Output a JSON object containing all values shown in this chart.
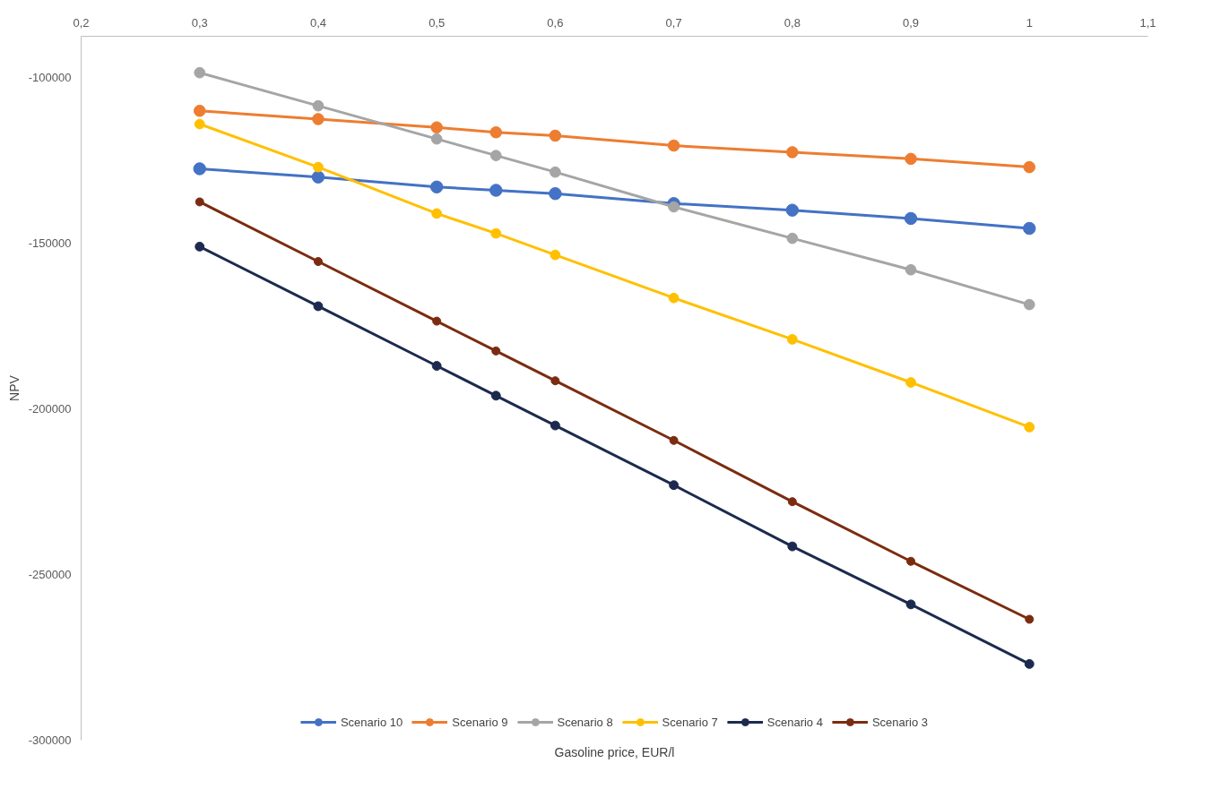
{
  "chart_data": {
    "type": "line",
    "xlabel": "Gasoline price, EUR/l",
    "ylabel": "NPV",
    "x": [
      0.3,
      0.4,
      0.5,
      0.55,
      0.6,
      0.7,
      0.8,
      0.9,
      1
    ],
    "series": [
      {
        "name": "Scenario 10",
        "color": "#4472c4",
        "values": [
          -127500,
          -130000,
          -133000,
          -134000,
          -135000,
          -138000,
          -140000,
          -142500,
          -145500
        ]
      },
      {
        "name": "Scenario 9",
        "color": "#ed7d31",
        "values": [
          -110000,
          -112500,
          -115000,
          -116500,
          -117500,
          -120500,
          -122500,
          -124500,
          -127000
        ]
      },
      {
        "name": "Scenario 8",
        "color": "#a5a5a5",
        "values": [
          -98500,
          -108500,
          -118500,
          -123500,
          -128500,
          -139000,
          -148500,
          -158000,
          -168500
        ]
      },
      {
        "name": "Scenario 7",
        "color": "#ffc000",
        "values": [
          -114000,
          -127000,
          -141000,
          -147000,
          -153500,
          -166500,
          -179000,
          -192000,
          -205500
        ]
      },
      {
        "name": "Scenario 4",
        "color": "#1c2a4f",
        "values": [
          -151000,
          -169000,
          -187000,
          -196000,
          -205000,
          -223000,
          -241500,
          -259000,
          -277000
        ]
      },
      {
        "name": "Scenario 3",
        "color": "#7b2c10",
        "values": [
          -137500,
          -155500,
          -173500,
          -182500,
          -191500,
          -209500,
          -228000,
          -246000,
          -263500
        ]
      }
    ],
    "xlim": [
      0.2,
      1.1
    ],
    "xticks": [
      {
        "value": 0.2,
        "label": "0,2"
      },
      {
        "value": 0.3,
        "label": "0,3"
      },
      {
        "value": 0.4,
        "label": "0,4"
      },
      {
        "value": 0.5,
        "label": "0,5"
      },
      {
        "value": 0.6,
        "label": "0,6"
      },
      {
        "value": 0.7,
        "label": "0,7"
      },
      {
        "value": 0.8,
        "label": "0,8"
      },
      {
        "value": 0.9,
        "label": "0,9"
      },
      {
        "value": 1,
        "label": "1"
      },
      {
        "value": 1.1,
        "label": "1,1"
      }
    ],
    "ylim": [
      -300000,
      -87500
    ],
    "yticks": [
      -100000,
      -150000,
      -200000,
      -250000,
      -300000
    ],
    "grid": false,
    "legend": "bottom",
    "marker": "circle",
    "line_style": "solid"
  }
}
